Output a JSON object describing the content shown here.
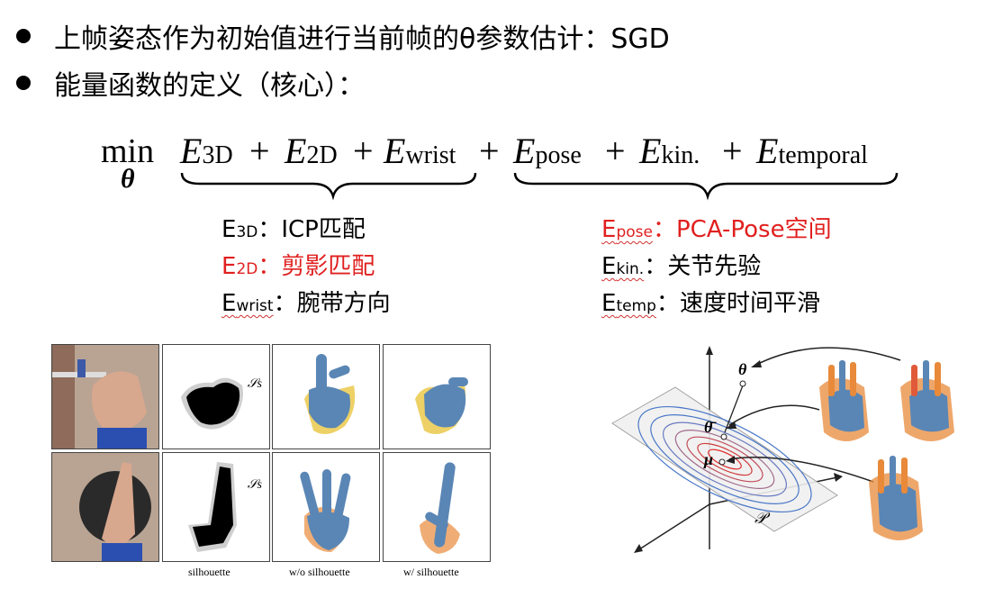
{
  "bullets": [
    "上帧姿态作为初始值进行当前帧的θ参数估计：SGD",
    "能量函数的定义（核心）："
  ],
  "formula": {
    "min": "min",
    "theta": "θ",
    "terms": [
      {
        "E": "E",
        "sub": "3D"
      },
      {
        "E": "E",
        "sub": "2D"
      },
      {
        "E": "E",
        "sub": "wrist"
      },
      {
        "E": "E",
        "sub": "pose"
      },
      {
        "E": "E",
        "sub": "kin."
      },
      {
        "E": "E",
        "sub": "temporal"
      }
    ],
    "plus": "+"
  },
  "left_legend": [
    {
      "E": "E",
      "sub": "3D",
      "sep": "：",
      "desc": "ICP匹配",
      "color": "#000000"
    },
    {
      "E": "E",
      "sub": "2D",
      "sep": "：",
      "desc": "剪影匹配",
      "color": "#e0201f"
    },
    {
      "E": "E",
      "sub": "wrist",
      "sep": "：",
      "desc": "腕带方向",
      "color": "#000000"
    }
  ],
  "right_legend": [
    {
      "E": "E",
      "sub": "pose",
      "sep": "：",
      "desc": "PCA-Pose空间",
      "color": "#e0201f"
    },
    {
      "E": "E",
      "sub": "kin.",
      "sep": "：",
      "desc": "关节先验",
      "color": "#000000"
    },
    {
      "E": "E",
      "sub": "temp",
      "sep": "：",
      "desc": "速度时间平滑",
      "color": "#000000"
    }
  ],
  "figure_left": {
    "silhouette_label": "𝒮s",
    "captions": [
      "silhouette",
      "w/o silhouette",
      "w/ silhouette"
    ]
  },
  "figure_right": {
    "theta": "θ",
    "theta_bar": "θ̄",
    "mu": "μ",
    "plane": "𝒫"
  }
}
